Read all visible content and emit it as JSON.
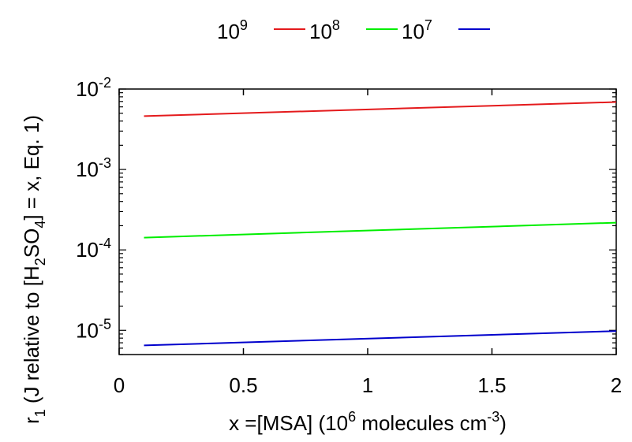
{
  "chart_data": {
    "type": "line",
    "xlabel": {
      "prefix": "x =[MSA] (10",
      "sup1": "6",
      "middle": " molecules cm",
      "sup2": "-3",
      "suffix": ")"
    },
    "ylabel": {
      "r": "r",
      "r_sub": "1",
      "part1": " (J relative to [H",
      "sub_h": "2",
      "part2": "SO",
      "sub_o": "4",
      "part3": "] = x, Eq. 1)"
    },
    "xlim": [
      0,
      2
    ],
    "ylim": [
      5e-06,
      0.01
    ],
    "yscale": "log",
    "x_ticks": [
      {
        "value": 0,
        "label": "0"
      },
      {
        "value": 0.5,
        "label": "0.5"
      },
      {
        "value": 1,
        "label": "1"
      },
      {
        "value": 1.5,
        "label": "1.5"
      },
      {
        "value": 2,
        "label": "2"
      }
    ],
    "y_ticks": [
      {
        "value": 1e-05,
        "base": "10",
        "exp": "-5"
      },
      {
        "value": 0.0001,
        "base": "10",
        "exp": "-4"
      },
      {
        "value": 0.001,
        "base": "10",
        "exp": "-3"
      },
      {
        "value": 0.01,
        "base": "10",
        "exp": "-2"
      }
    ],
    "legend_position": "top",
    "series": [
      {
        "name": {
          "base": "10",
          "exp": "9"
        },
        "color": "#e41a1c",
        "x": [
          0.1,
          2.0
        ],
        "y": [
          0.0046,
          0.0069
        ]
      },
      {
        "name": {
          "base": "10",
          "exp": "8"
        },
        "color": "#00ee00",
        "x": [
          0.1,
          2.0
        ],
        "y": [
          0.000142,
          0.000218
        ]
      },
      {
        "name": {
          "base": "10",
          "exp": "7"
        },
        "color": "#0000cc",
        "x": [
          0.1,
          2.0
        ],
        "y": [
          6.5e-06,
          9.8e-06
        ]
      }
    ]
  }
}
